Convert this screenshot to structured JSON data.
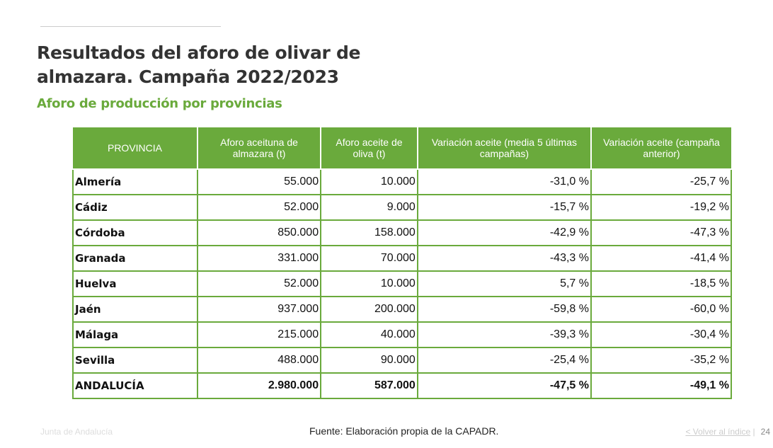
{
  "title": "Resultados del aforo de olivar de almazara. Campaña 2022/2023",
  "subtitle": "Aforo de producción por provincias",
  "table": {
    "headers": [
      "PROVINCIA",
      "Aforo aceituna de almazara (t)",
      "Aforo aceite de oliva (t)",
      "Variación aceite (media 5 últimas campañas)",
      "Variación aceite (campaña anterior)"
    ],
    "rows": [
      [
        "Almería",
        "55.000",
        "10.000",
        "-31,0 %",
        "-25,7 %"
      ],
      [
        "Cádiz",
        "52.000",
        "9.000",
        "-15,7 %",
        "-19,2 %"
      ],
      [
        "Córdoba",
        "850.000",
        "158.000",
        "-42,9 %",
        "-47,3 %"
      ],
      [
        "Granada",
        "331.000",
        "70.000",
        "-43,3 %",
        "-41,4 %"
      ],
      [
        "Huelva",
        "52.000",
        "10.000",
        "5,7 %",
        "-18,5 %"
      ],
      [
        "Jaén",
        "937.000",
        "200.000",
        "-59,8 %",
        "-60,0 %"
      ],
      [
        "Málaga",
        "215.000",
        "40.000",
        "-39,3 %",
        "-30,4 %"
      ],
      [
        "Sevilla",
        "488.000",
        "90.000",
        "-25,4 %",
        "-35,2 %"
      ],
      [
        "ANDALUCÍA",
        "2.980.000",
        "587.000",
        "-47,5 %",
        "-49,1 %"
      ]
    ]
  },
  "footer": {
    "org": "Junta de Andalucía",
    "source": "Fuente: Elaboración propia de la CAPADR.",
    "back_link": "< Volver al índice",
    "page": "24"
  },
  "colors": {
    "accent": "#6aaa3c"
  }
}
